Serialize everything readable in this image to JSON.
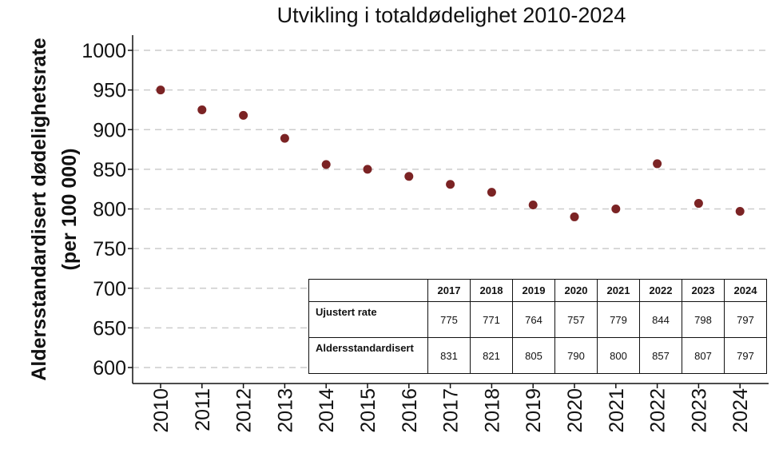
{
  "chart_data": {
    "type": "scatter",
    "title": "Utvikling i totaldødelighet 2010-2024",
    "ylabel": "Aldersstandardisert dødelighetsrate (per 100 000)",
    "ylabel_lines": [
      "Aldersstandardisert dødelighetsrate",
      "(per 100 000)"
    ],
    "xlabel": "",
    "x": [
      "2010",
      "2011",
      "2012",
      "2013",
      "2014",
      "2015",
      "2016",
      "2017",
      "2018",
      "2019",
      "2020",
      "2021",
      "2022",
      "2023",
      "2024"
    ],
    "series": [
      {
        "values": [
          950,
          925,
          918,
          889,
          856,
          850,
          841,
          831,
          821,
          805,
          790,
          800,
          857,
          807,
          797
        ]
      }
    ],
    "ylim": [
      600,
      1000
    ],
    "yticks": [
      600,
      650,
      700,
      750,
      800,
      850,
      900,
      950,
      1000
    ],
    "grid": "horizontal dashed",
    "colors": {
      "points": "#7b2324",
      "grid": "#cccccc"
    }
  },
  "table": {
    "years": [
      "2017",
      "2018",
      "2019",
      "2020",
      "2021",
      "2022",
      "2023",
      "2024"
    ],
    "rows": [
      {
        "label": "Ujustert rate",
        "values": [
          "775",
          "771",
          "764",
          "757",
          "779",
          "844",
          "798",
          "797"
        ]
      },
      {
        "label": "Aldersstandardisert",
        "values": [
          "831",
          "821",
          "805",
          "790",
          "800",
          "857",
          "807",
          "797"
        ]
      }
    ]
  }
}
